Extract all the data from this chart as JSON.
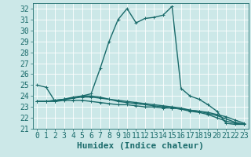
{
  "xlabel": "Humidex (Indice chaleur)",
  "bg_color": "#cce8e8",
  "grid_color": "#ffffff",
  "line_color": "#1a6b6b",
  "xlim": [
    -0.5,
    23.5
  ],
  "ylim": [
    21,
    32.5
  ],
  "yticks": [
    21,
    22,
    23,
    24,
    25,
    26,
    27,
    28,
    29,
    30,
    31,
    32
  ],
  "xticks": [
    0,
    1,
    2,
    3,
    4,
    5,
    6,
    7,
    8,
    9,
    10,
    11,
    12,
    13,
    14,
    15,
    16,
    17,
    18,
    19,
    20,
    21,
    22,
    23
  ],
  "series": [
    [
      25.0,
      24.8,
      23.5,
      23.7,
      23.9,
      24.0,
      24.2,
      26.5,
      29.0,
      31.0,
      32.0,
      30.7,
      31.1,
      31.2,
      31.4,
      32.2,
      24.7,
      24.0,
      23.7,
      23.2,
      22.6,
      21.5,
      21.4,
      21.4
    ],
    [
      23.5,
      23.5,
      23.5,
      23.6,
      23.6,
      23.6,
      23.5,
      23.4,
      23.3,
      23.2,
      23.2,
      23.1,
      23.0,
      23.0,
      22.9,
      22.9,
      22.8,
      22.7,
      22.6,
      22.5,
      22.3,
      22.1,
      21.8,
      21.5
    ],
    [
      23.5,
      23.5,
      23.6,
      23.7,
      23.8,
      23.9,
      23.9,
      23.8,
      23.7,
      23.6,
      23.5,
      23.4,
      23.3,
      23.2,
      23.1,
      23.0,
      22.9,
      22.7,
      22.6,
      22.4,
      22.2,
      21.9,
      21.6,
      21.4
    ],
    [
      23.5,
      23.5,
      23.6,
      23.7,
      23.8,
      24.0,
      24.0,
      23.9,
      23.7,
      23.5,
      23.4,
      23.3,
      23.2,
      23.1,
      23.0,
      22.9,
      22.8,
      22.6,
      22.5,
      22.3,
      22.0,
      21.7,
      21.5,
      21.4
    ]
  ],
  "marker_size": 3,
  "line_width": 1.0,
  "tick_fontsize": 7,
  "xlabel_fontsize": 8
}
